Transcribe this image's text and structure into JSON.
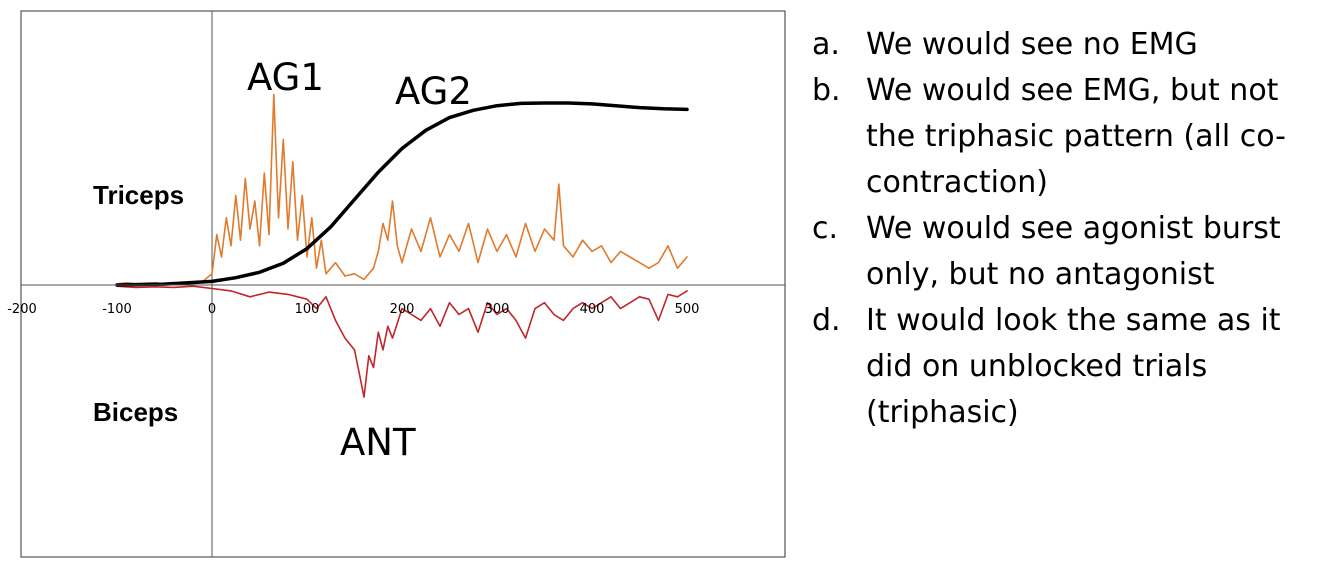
{
  "chart_data": {
    "type": "line",
    "x_ticks": [
      "-200",
      "-100",
      "0",
      "100",
      "200",
      "300",
      "400",
      "500"
    ],
    "xlim": [
      -200,
      600
    ],
    "muscle_labels": {
      "upper": "Triceps",
      "lower": "Biceps"
    },
    "annotations": {
      "ag1": "AG1",
      "ag2": "AG2",
      "ant": "ANT"
    },
    "series": [
      {
        "key": "position",
        "color": "#000000",
        "x": [
          -100,
          -50,
          0,
          25,
          50,
          75,
          100,
          125,
          150,
          175,
          200,
          225,
          250,
          275,
          300,
          325,
          350,
          375,
          400,
          425,
          450,
          475,
          500
        ],
        "y": [
          0,
          0.005,
          0.02,
          0.04,
          0.07,
          0.12,
          0.2,
          0.32,
          0.47,
          0.62,
          0.75,
          0.85,
          0.92,
          0.96,
          0.985,
          0.998,
          1.0,
          1.0,
          0.995,
          0.985,
          0.975,
          0.968,
          0.965
        ]
      },
      {
        "key": "triceps-emg",
        "color": "#E07B2E",
        "x": [
          -100,
          -90,
          -80,
          -70,
          -60,
          -50,
          -40,
          -30,
          -20,
          -10,
          0,
          5,
          10,
          15,
          20,
          25,
          30,
          35,
          40,
          45,
          50,
          55,
          60,
          65,
          70,
          75,
          80,
          85,
          90,
          95,
          100,
          105,
          110,
          115,
          120,
          130,
          140,
          150,
          160,
          170,
          175,
          180,
          185,
          190,
          195,
          200,
          210,
          220,
          230,
          240,
          250,
          260,
          270,
          280,
          290,
          300,
          310,
          320,
          330,
          340,
          350,
          355,
          360,
          365,
          370,
          380,
          390,
          400,
          410,
          420,
          430,
          440,
          450,
          460,
          470,
          480,
          490,
          500
        ],
        "y": [
          0.01,
          0.02,
          0.01,
          0.015,
          0.02,
          0.01,
          0.015,
          0.02,
          0.015,
          0.03,
          0.1,
          0.45,
          0.25,
          0.6,
          0.35,
          0.8,
          0.4,
          0.95,
          0.5,
          0.75,
          0.35,
          1.0,
          0.45,
          1.7,
          0.6,
          1.3,
          0.5,
          1.1,
          0.4,
          0.8,
          0.25,
          0.6,
          0.15,
          0.4,
          0.1,
          0.2,
          0.08,
          0.1,
          0.05,
          0.15,
          0.3,
          0.55,
          0.4,
          0.75,
          0.35,
          0.2,
          0.5,
          0.3,
          0.6,
          0.25,
          0.45,
          0.3,
          0.55,
          0.2,
          0.5,
          0.3,
          0.45,
          0.25,
          0.55,
          0.3,
          0.5,
          0.45,
          0.4,
          0.9,
          0.35,
          0.25,
          0.4,
          0.3,
          0.35,
          0.2,
          0.3,
          0.25,
          0.2,
          0.15,
          0.2,
          0.35,
          0.15,
          0.25
        ]
      },
      {
        "key": "biceps-emg",
        "color": "#C0262A",
        "x": [
          -100,
          -80,
          -60,
          -40,
          -20,
          0,
          20,
          40,
          60,
          80,
          100,
          110,
          120,
          130,
          140,
          150,
          155,
          160,
          165,
          170,
          175,
          180,
          185,
          190,
          200,
          210,
          220,
          230,
          240,
          250,
          260,
          270,
          280,
          290,
          300,
          310,
          320,
          330,
          340,
          350,
          360,
          370,
          380,
          390,
          400,
          410,
          420,
          430,
          440,
          450,
          460,
          470,
          480,
          490,
          500
        ],
        "y": [
          -0.01,
          -0.02,
          -0.015,
          -0.02,
          -0.01,
          -0.03,
          -0.05,
          -0.1,
          -0.06,
          -0.08,
          -0.12,
          -0.2,
          -0.1,
          -0.3,
          -0.45,
          -0.55,
          -0.75,
          -0.95,
          -0.6,
          -0.7,
          -0.4,
          -0.55,
          -0.35,
          -0.45,
          -0.2,
          -0.25,
          -0.3,
          -0.2,
          -0.35,
          -0.15,
          -0.25,
          -0.2,
          -0.4,
          -0.15,
          -0.25,
          -0.2,
          -0.3,
          -0.45,
          -0.2,
          -0.15,
          -0.25,
          -0.3,
          -0.2,
          -0.15,
          -0.2,
          -0.15,
          -0.1,
          -0.2,
          -0.15,
          -0.1,
          -0.12,
          -0.3,
          -0.08,
          -0.1,
          -0.05
        ]
      }
    ]
  },
  "options": [
    {
      "letter": "a.",
      "text": "We would see no EMG"
    },
    {
      "letter": "b.",
      "text": "We would see EMG, but not the triphasic pattern (all co-contraction)"
    },
    {
      "letter": "c.",
      "text": "We would see agonist burst only, but no antagonist"
    },
    {
      "letter": "d.",
      "text": "It would look the same as it did on unblocked trials (triphasic)"
    }
  ]
}
